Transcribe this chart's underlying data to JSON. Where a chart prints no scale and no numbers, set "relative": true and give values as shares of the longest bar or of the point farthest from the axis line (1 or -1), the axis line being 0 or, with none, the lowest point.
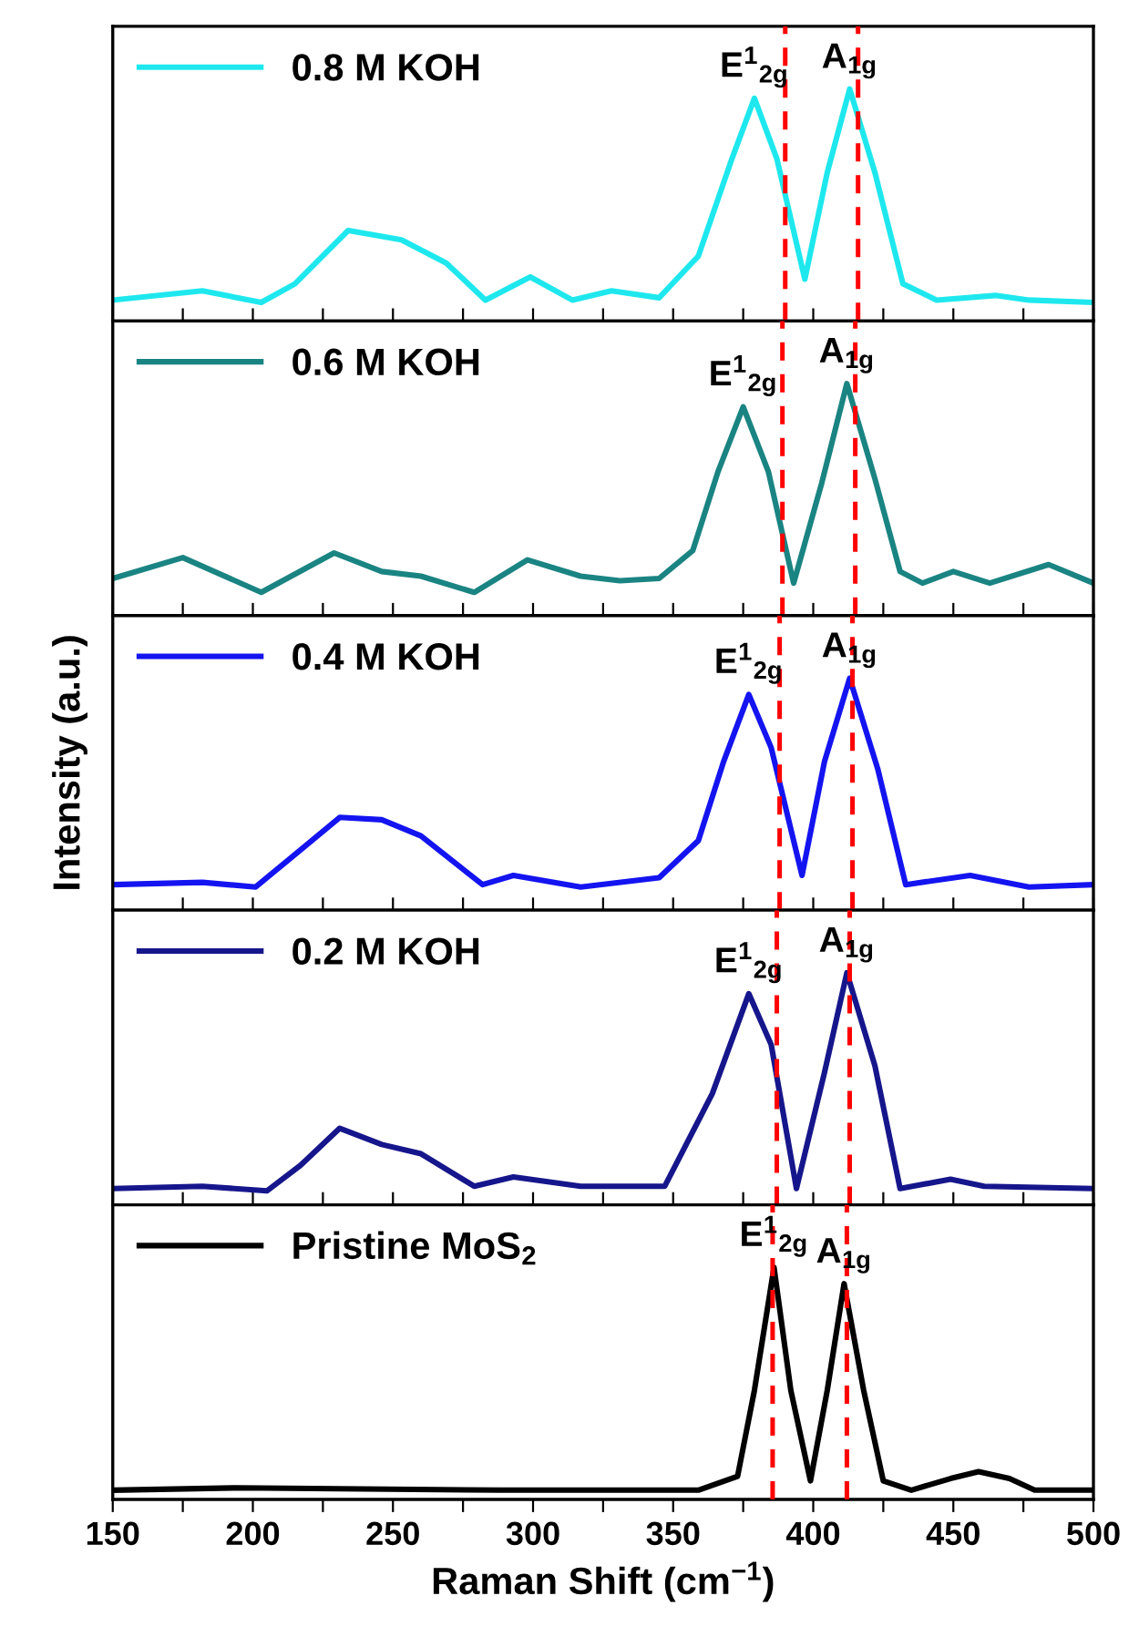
{
  "chart_data": [
    {
      "type": "line",
      "relative": true,
      "xlim": [
        150,
        500
      ],
      "xticks": [
        150,
        {
          "value": 175,
          "label": null
        },
        200,
        {
          "value": 225,
          "label": null
        },
        250,
        {
          "value": 275,
          "label": null
        },
        300,
        {
          "value": 325,
          "label": null
        },
        350,
        {
          "value": 375,
          "label": null
        },
        400,
        {
          "value": 425,
          "label": null
        },
        450,
        {
          "value": 475,
          "label": null
        },
        500
      ],
      "tick_labels": false,
      "legend": "top left",
      "x": [
        150,
        182,
        203,
        215,
        234,
        253,
        269,
        283,
        299,
        314,
        328,
        345,
        359,
        371,
        379,
        387,
        397,
        405,
        413,
        422,
        432,
        444,
        465,
        477,
        500
      ],
      "series": [
        {
          "name": "0.8 M KOH",
          "color": "#1ee8ee",
          "values": [
            0.09,
            0.13,
            0.08,
            0.16,
            0.39,
            0.35,
            0.25,
            0.09,
            0.19,
            0.09,
            0.13,
            0.1,
            0.28,
            0.7,
            0.96,
            0.7,
            0.18,
            0.64,
            1.0,
            0.64,
            0.16,
            0.09,
            0.11,
            0.09,
            0.08
          ]
        }
      ],
      "annotations": [
        {
          "text": "E$^{1}$$_{2g}$",
          "x": 379,
          "y": 0.96
        },
        {
          "text": "A$_{1g}$",
          "x": 413,
          "y": 1.0
        }
      ],
      "ref_lines": [
        {
          "axis": "x",
          "value": 390,
          "label": null,
          "color": "#ff0000",
          "line_style": "dashed"
        },
        {
          "axis": "x",
          "value": 416,
          "label": null,
          "color": "#ff0000",
          "line_style": "dashed"
        }
      ]
    },
    {
      "type": "line",
      "relative": true,
      "xlim": [
        150,
        500
      ],
      "xticks": [
        150,
        {
          "value": 175,
          "label": null
        },
        200,
        {
          "value": 225,
          "label": null
        },
        250,
        {
          "value": 275,
          "label": null
        },
        300,
        {
          "value": 325,
          "label": null
        },
        350,
        {
          "value": 375,
          "label": null
        },
        400,
        {
          "value": 425,
          "label": null
        },
        450,
        {
          "value": 475,
          "label": null
        },
        500
      ],
      "tick_labels": false,
      "legend": "top left",
      "x": [
        150,
        175,
        203,
        229,
        246,
        260,
        279,
        298,
        317,
        331,
        345,
        357,
        366,
        375,
        384,
        393,
        403,
        412,
        422,
        431,
        439,
        450,
        463,
        484,
        500
      ],
      "series": [
        {
          "name": "0.6 M KOH",
          "color": "#1a8482",
          "values": [
            0.16,
            0.25,
            0.1,
            0.27,
            0.19,
            0.17,
            0.1,
            0.24,
            0.17,
            0.15,
            0.16,
            0.28,
            0.62,
            0.9,
            0.62,
            0.14,
            0.57,
            1.0,
            0.59,
            0.19,
            0.14,
            0.19,
            0.14,
            0.22,
            0.14
          ]
        }
      ],
      "annotations": [
        {
          "text": "E$^{1}$$_{2g}$",
          "x": 375,
          "y": 0.9
        },
        {
          "text": "A$_{1g}$",
          "x": 412,
          "y": 1.0
        }
      ],
      "ref_lines": [
        {
          "axis": "x",
          "value": 389,
          "label": null,
          "color": "#ff0000",
          "line_style": "dashed"
        },
        {
          "axis": "x",
          "value": 415,
          "label": null,
          "color": "#ff0000",
          "line_style": "dashed"
        }
      ]
    },
    {
      "type": "line",
      "relative": true,
      "xlim": [
        150,
        500
      ],
      "xticks": [
        150,
        {
          "value": 175,
          "label": null
        },
        200,
        {
          "value": 225,
          "label": null
        },
        250,
        {
          "value": 275,
          "label": null
        },
        300,
        {
          "value": 325,
          "label": null
        },
        350,
        {
          "value": 375,
          "label": null
        },
        400,
        {
          "value": 425,
          "label": null
        },
        450,
        {
          "value": 475,
          "label": null
        },
        500
      ],
      "tick_labels": false,
      "legend": "top left",
      "ylabel": "Intensity (a.u.)",
      "x": [
        150,
        182,
        201,
        215,
        231,
        246,
        260,
        282,
        293,
        317,
        345,
        359,
        368,
        377,
        385,
        396,
        404,
        413,
        423,
        433,
        456,
        477,
        500
      ],
      "series": [
        {
          "name": "0.4 M KOH",
          "color": "#1414f0",
          "values": [
            0.11,
            0.12,
            0.1,
            0.24,
            0.4,
            0.39,
            0.32,
            0.11,
            0.15,
            0.1,
            0.14,
            0.3,
            0.64,
            0.93,
            0.7,
            0.15,
            0.64,
            1.0,
            0.61,
            0.11,
            0.15,
            0.1,
            0.11
          ]
        }
      ],
      "annotations": [
        {
          "text": "E$^{1}$$_{2g}$",
          "x": 377,
          "y": 0.93
        },
        {
          "text": "A$_{1g}$",
          "x": 413,
          "y": 1.0
        }
      ],
      "ref_lines": [
        {
          "axis": "x",
          "value": 388,
          "label": null,
          "color": "#ff0000",
          "line_style": "dashed"
        },
        {
          "axis": "x",
          "value": 414,
          "label": null,
          "color": "#ff0000",
          "line_style": "dashed"
        }
      ]
    },
    {
      "type": "line",
      "relative": true,
      "xlim": [
        150,
        500
      ],
      "xticks": [
        150,
        {
          "value": 175,
          "label": null
        },
        200,
        {
          "value": 225,
          "label": null
        },
        250,
        {
          "value": 275,
          "label": null
        },
        300,
        {
          "value": 325,
          "label": null
        },
        350,
        {
          "value": 375,
          "label": null
        },
        400,
        {
          "value": 425,
          "label": null
        },
        450,
        {
          "value": 475,
          "label": null
        },
        500
      ],
      "tick_labels": false,
      "legend": "top left",
      "x": [
        150,
        182,
        205,
        217,
        231,
        246,
        260,
        279,
        293,
        317,
        331,
        347,
        364,
        377,
        385,
        394,
        404,
        412,
        422,
        431,
        449,
        461,
        500
      ],
      "series": [
        {
          "name": "0.2 M KOH",
          "color": "#16168c",
          "values": [
            0.07,
            0.08,
            0.06,
            0.17,
            0.33,
            0.26,
            0.22,
            0.08,
            0.12,
            0.08,
            0.08,
            0.08,
            0.48,
            0.91,
            0.69,
            0.07,
            0.57,
            1.0,
            0.6,
            0.07,
            0.11,
            0.08,
            0.07
          ]
        }
      ],
      "annotations": [
        {
          "text": "E$^{1}$$_{2g}$",
          "x": 377,
          "y": 0.91
        },
        {
          "text": "A$_{1g}$",
          "x": 412,
          "y": 1.0
        }
      ],
      "ref_lines": [
        {
          "axis": "x",
          "value": 387,
          "label": null,
          "color": "#ff0000",
          "line_style": "dashed"
        },
        {
          "axis": "x",
          "value": 413,
          "label": null,
          "color": "#ff0000",
          "line_style": "dashed"
        }
      ]
    },
    {
      "type": "line",
      "relative": true,
      "xlim": [
        150,
        500
      ],
      "xticks": [
        150,
        {
          "value": 175,
          "label": null
        },
        200,
        {
          "value": 225,
          "label": null
        },
        250,
        {
          "value": 275,
          "label": null
        },
        300,
        {
          "value": 325,
          "label": null
        },
        350,
        {
          "value": 375,
          "label": null
        },
        400,
        {
          "value": 425,
          "label": null
        },
        450,
        {
          "value": 475,
          "label": null
        },
        500
      ],
      "tick_labels": "x",
      "legend": "top left",
      "xlabel": "Raman Shift (cm$^{−1}$)",
      "x": [
        150,
        194,
        288,
        359,
        373,
        379,
        386,
        392,
        399,
        405,
        411,
        418,
        425,
        435,
        449,
        459,
        470,
        479,
        500
      ],
      "series": [
        {
          "name": "Pristine MoS$_{2}$",
          "color": "#000000",
          "values": [
            0.04,
            0.05,
            0.04,
            0.04,
            0.1,
            0.47,
            1.0,
            0.47,
            0.08,
            0.47,
            0.93,
            0.47,
            0.08,
            0.04,
            0.09,
            0.12,
            0.09,
            0.04,
            0.04
          ]
        }
      ],
      "annotations": [
        {
          "text": "E$^{1}$$_{2g}$",
          "x": 386,
          "y": 1.0
        },
        {
          "text": "A$_{1g}$",
          "x": 411,
          "y": 0.93
        }
      ],
      "ref_lines": [
        {
          "axis": "x",
          "value": 385.5,
          "label": null,
          "color": "#ff0000",
          "line_style": "dashed"
        },
        {
          "axis": "x",
          "value": 412,
          "label": null,
          "color": "#ff0000",
          "line_style": "dashed"
        }
      ]
    }
  ]
}
